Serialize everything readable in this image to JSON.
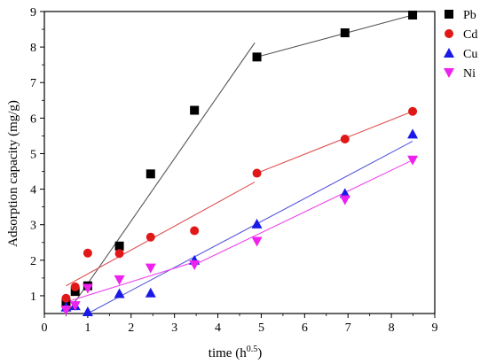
{
  "chart_data": {
    "type": "scatter",
    "xlabel": "time (h",
    "xlabel_sup": "0.5",
    "xlabel_close": ")",
    "ylabel": "Adsorption capacity (mg/g)",
    "xlim": [
      0,
      9
    ],
    "ylim": [
      0.5,
      9
    ],
    "xticks": [
      0,
      1,
      2,
      3,
      4,
      5,
      6,
      7,
      8,
      9
    ],
    "yticks": [
      1,
      2,
      3,
      4,
      5,
      6,
      7,
      8,
      9
    ],
    "grid": false,
    "legend_position": "top-right",
    "series": [
      {
        "name": "Pb",
        "marker": "square",
        "color": "#000000",
        "line_color": "#555555",
        "points": [
          [
            0.5,
            0.78
          ],
          [
            0.71,
            1.12
          ],
          [
            1.0,
            1.28
          ],
          [
            1.73,
            2.4
          ],
          [
            2.45,
            4.43
          ],
          [
            3.46,
            6.22
          ],
          [
            4.9,
            7.72
          ],
          [
            6.93,
            8.4
          ],
          [
            8.49,
            8.9
          ]
        ],
        "fit_lines": [
          [
            [
              0.55,
              0.55
            ],
            [
              4.85,
              8.12
            ]
          ],
          [
            [
              4.9,
              7.72
            ],
            [
              8.49,
              8.9
            ]
          ]
        ]
      },
      {
        "name": "Cd",
        "marker": "circle",
        "color": "#e01818",
        "line_color": "#e05050",
        "points": [
          [
            0.5,
            0.93
          ],
          [
            0.71,
            1.25
          ],
          [
            1.0,
            2.2
          ],
          [
            1.73,
            2.19
          ],
          [
            2.45,
            2.65
          ],
          [
            3.46,
            2.83
          ],
          [
            4.9,
            4.45
          ],
          [
            6.93,
            5.41
          ],
          [
            8.49,
            6.19
          ]
        ],
        "fit_lines": [
          [
            [
              0.5,
              1.28
            ],
            [
              4.85,
              4.2
            ]
          ],
          [
            [
              4.9,
              4.45
            ],
            [
              8.49,
              6.19
            ]
          ]
        ]
      },
      {
        "name": "Cu",
        "marker": "triangle-up",
        "color": "#1a1ae6",
        "line_color": "#5555dd",
        "points": [
          [
            0.5,
            0.68
          ],
          [
            0.71,
            0.72
          ],
          [
            1.0,
            0.55
          ],
          [
            1.73,
            1.06
          ],
          [
            2.45,
            1.08
          ],
          [
            3.46,
            2.0
          ],
          [
            4.9,
            3.02
          ],
          [
            6.93,
            3.88
          ],
          [
            8.49,
            5.55
          ]
        ],
        "fit_lines": [
          [
            [
              1.0,
              0.5
            ],
            [
              8.49,
              5.35
            ]
          ]
        ]
      },
      {
        "name": "Ni",
        "marker": "triangle-down",
        "color": "#ee22ee",
        "line_color": "#ee44ee",
        "points": [
          [
            0.5,
            0.6
          ],
          [
            0.71,
            0.72
          ],
          [
            1.0,
            1.21
          ],
          [
            1.73,
            1.45
          ],
          [
            2.45,
            1.78
          ],
          [
            3.46,
            1.87
          ],
          [
            4.9,
            2.53
          ],
          [
            6.93,
            3.7
          ],
          [
            8.49,
            4.82
          ]
        ],
        "fit_lines": [
          [
            [
              0.5,
              0.82
            ],
            [
              3.46,
              1.95
            ]
          ],
          [
            [
              3.46,
              1.87
            ],
            [
              8.49,
              4.82
            ]
          ]
        ]
      }
    ]
  }
}
